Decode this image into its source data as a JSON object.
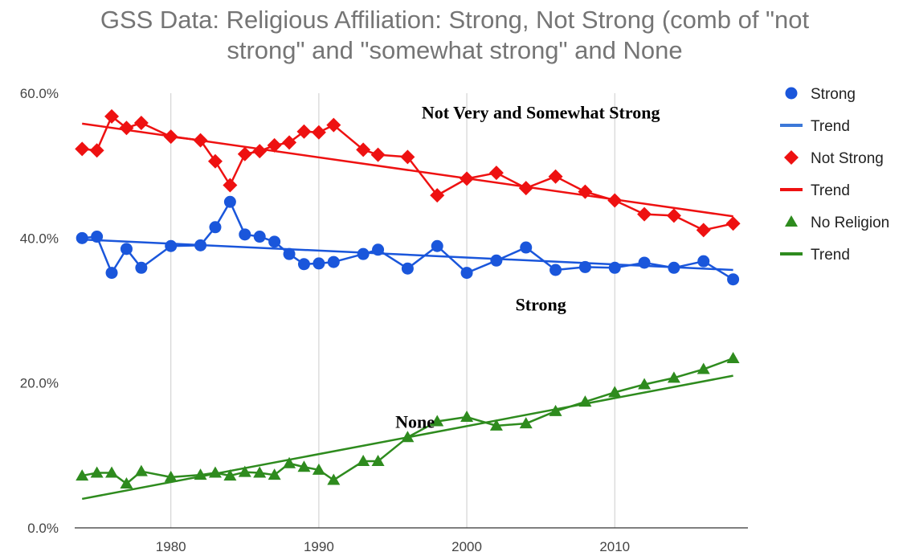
{
  "chart_data": {
    "type": "line",
    "title_lines": [
      "GSS Data: Religious Affiliation: Strong, Not Strong (comb of \"not",
      "strong\" and \"somewhat strong\" and None"
    ],
    "xlim": [
      1973.5,
      2019
    ],
    "ylim": [
      0,
      60
    ],
    "x_ticks": [
      1980,
      1990,
      2000,
      2010
    ],
    "x_tick_labels": [
      "1980",
      "1990",
      "2000",
      "2010"
    ],
    "y_ticks": [
      0,
      20,
      40,
      60
    ],
    "y_tick_labels": [
      "0.0%",
      "20.0%",
      "40.0%",
      "60.0%"
    ],
    "grid": "vertical",
    "legend_position": "right",
    "legend": [
      {
        "label": "Strong",
        "kind": "marker",
        "marker": "circle",
        "color": "#1a56db"
      },
      {
        "label": "Trend",
        "kind": "line",
        "color": "#3c78d8"
      },
      {
        "label": "Not Strong",
        "kind": "marker",
        "marker": "diamond",
        "color": "#ee1111"
      },
      {
        "label": "Trend",
        "kind": "line",
        "color": "#ee1111"
      },
      {
        "label": "No Religion",
        "kind": "marker",
        "marker": "triangle",
        "color": "#2e8b1e"
      },
      {
        "label": "Trend",
        "kind": "line",
        "color": "#2e8b1e"
      }
    ],
    "series": [
      {
        "name": "Strong",
        "color": "#1a56db",
        "marker": "circle",
        "x": [
          1974,
          1975,
          1976,
          1977,
          1978,
          1980,
          1982,
          1983,
          1984,
          1985,
          1986,
          1987,
          1988,
          1989,
          1990,
          1991,
          1993,
          1994,
          1996,
          1998,
          2000,
          2002,
          2004,
          2006,
          2008,
          2010,
          2012,
          2014,
          2016,
          2018
        ],
        "y": [
          40.0,
          40.2,
          35.2,
          38.5,
          35.9,
          38.9,
          39.0,
          41.5,
          45.0,
          40.5,
          40.2,
          39.5,
          37.8,
          36.4,
          36.5,
          36.7,
          37.8,
          38.4,
          35.8,
          38.9,
          35.2,
          36.9,
          38.7,
          35.6,
          36.0,
          35.9,
          36.6,
          35.9,
          36.8,
          34.3
        ],
        "trend": [
          [
            1974,
            39.8
          ],
          [
            2018,
            35.6
          ]
        ]
      },
      {
        "name": "Not Strong",
        "color": "#ee1111",
        "marker": "diamond",
        "x": [
          1974,
          1975,
          1976,
          1977,
          1978,
          1980,
          1982,
          1983,
          1984,
          1985,
          1986,
          1987,
          1988,
          1989,
          1990,
          1991,
          1993,
          1994,
          1996,
          1998,
          2000,
          2002,
          2004,
          2006,
          2008,
          2010,
          2012,
          2014,
          2016,
          2018
        ],
        "y": [
          52.3,
          52.1,
          56.8,
          55.2,
          55.9,
          54.0,
          53.5,
          50.6,
          47.3,
          51.6,
          52.0,
          52.8,
          53.2,
          54.7,
          54.6,
          55.6,
          52.2,
          51.5,
          51.2,
          45.9,
          48.2,
          49.0,
          46.9,
          48.5,
          46.4,
          45.2,
          43.3,
          43.1,
          41.1,
          42.0
        ],
        "trend": [
          [
            1974,
            55.8
          ],
          [
            2018,
            43.0
          ]
        ]
      },
      {
        "name": "No Religion",
        "color": "#2e8b1e",
        "marker": "triangle",
        "x": [
          1974,
          1975,
          1976,
          1977,
          1978,
          1980,
          1982,
          1983,
          1984,
          1985,
          1986,
          1987,
          1988,
          1989,
          1990,
          1991,
          1993,
          1994,
          1996,
          1998,
          2000,
          2002,
          2004,
          2006,
          2008,
          2010,
          2012,
          2014,
          2016,
          2018
        ],
        "y": [
          7.2,
          7.6,
          7.6,
          6.1,
          7.8,
          7.0,
          7.3,
          7.6,
          7.2,
          7.7,
          7.6,
          7.3,
          8.9,
          8.4,
          8.0,
          6.6,
          9.2,
          9.2,
          12.5,
          14.7,
          15.3,
          14.1,
          14.4,
          16.1,
          17.4,
          18.7,
          19.8,
          20.7,
          21.9,
          23.4
        ],
        "trend": [
          [
            1974,
            4.0
          ],
          [
            2018,
            21.0
          ]
        ]
      }
    ],
    "annotations": [
      {
        "text": "Not Very and Somewhat Strong",
        "x": 2005,
        "y": 56.5
      },
      {
        "text": "Strong",
        "x": 2005,
        "y": 30.0
      },
      {
        "text": "None",
        "x": 1996.5,
        "y": 13.8
      }
    ]
  }
}
